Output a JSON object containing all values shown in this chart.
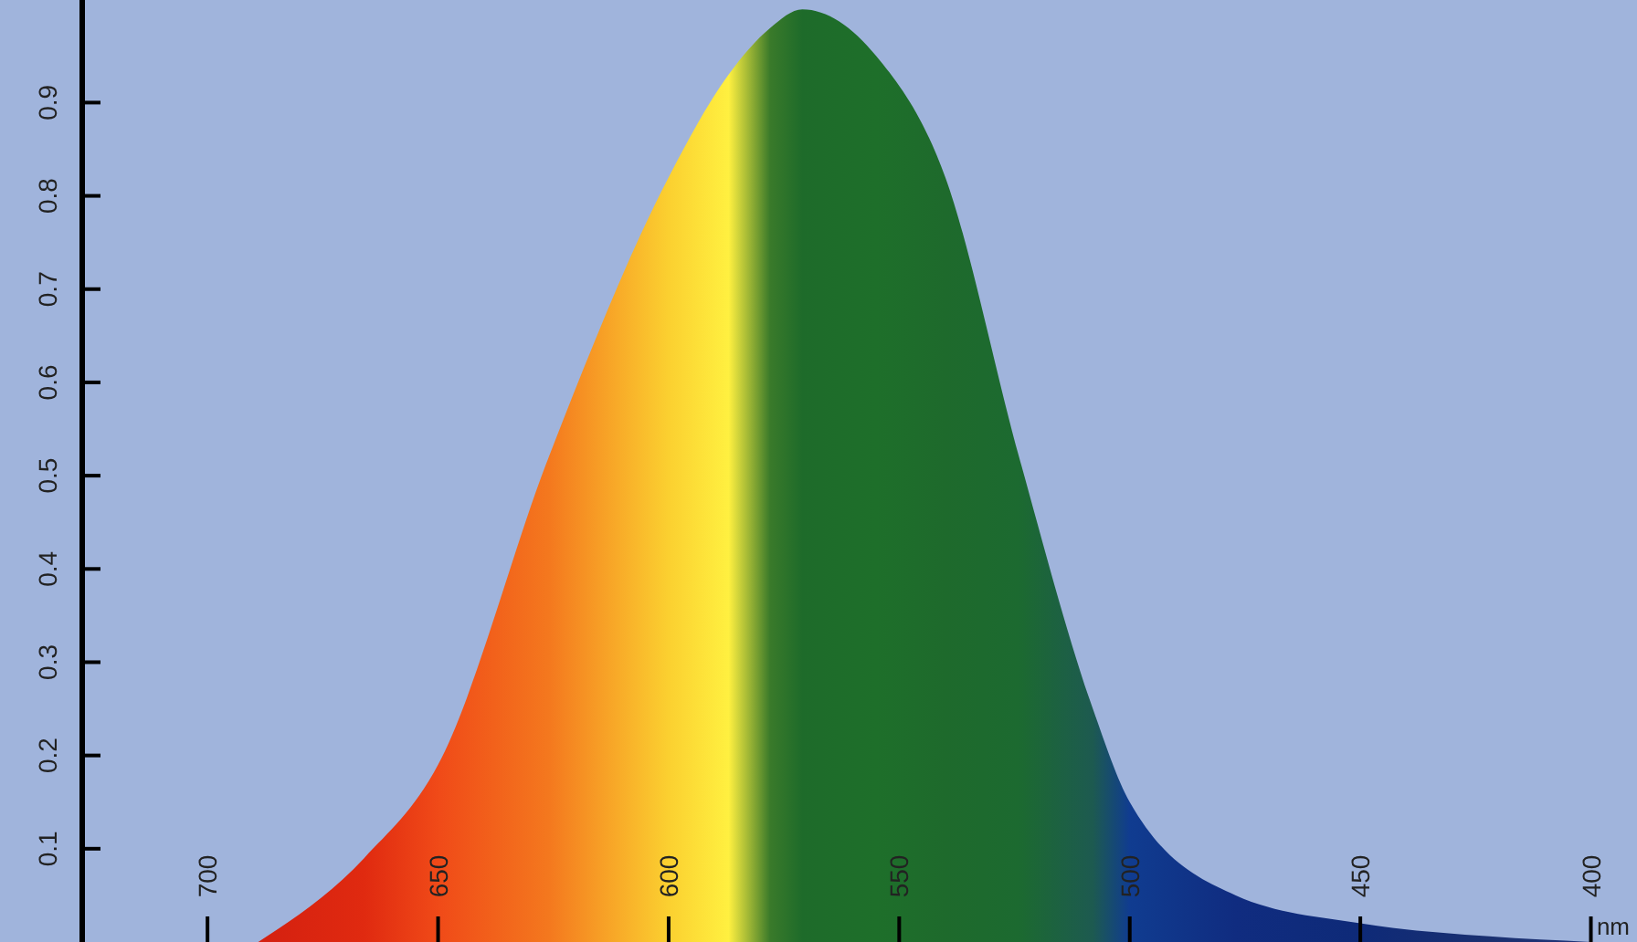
{
  "chart_data": {
    "type": "area",
    "xlabel": "nm",
    "xlim": [
      745,
      390
    ],
    "ylim": [
      0,
      1.01
    ],
    "xticks": [
      700,
      650,
      600,
      550,
      500,
      450,
      400
    ],
    "yticks": [
      0.1,
      0.2,
      0.3,
      0.4,
      0.5,
      0.6,
      0.7,
      0.8,
      0.9
    ],
    "x": [
      689,
      666,
      650,
      626,
      600,
      587,
      578,
      571,
      555,
      540,
      524,
      508,
      500,
      477,
      450,
      422,
      400
    ],
    "values": [
      0,
      0.09,
      0.19,
      0.52,
      0.82,
      0.93,
      0.98,
      1.0,
      0.95,
      0.82,
      0.52,
      0.25,
      0.15,
      0.05,
      0.02,
      0.006,
      0
    ],
    "colors": [
      "#d42010",
      "#e02a10",
      "#f04a18",
      "#f4781e",
      "#fbd030",
      "#fff040",
      "#3a7a2a",
      "#1e6b2a",
      "#1e6f2a",
      "#1e6a2c",
      "#1c6a30",
      "#1d5a50",
      "#103c90",
      "#102c80",
      "#0e2a78",
      "#1a3070",
      "#203478"
    ],
    "grid": false
  }
}
